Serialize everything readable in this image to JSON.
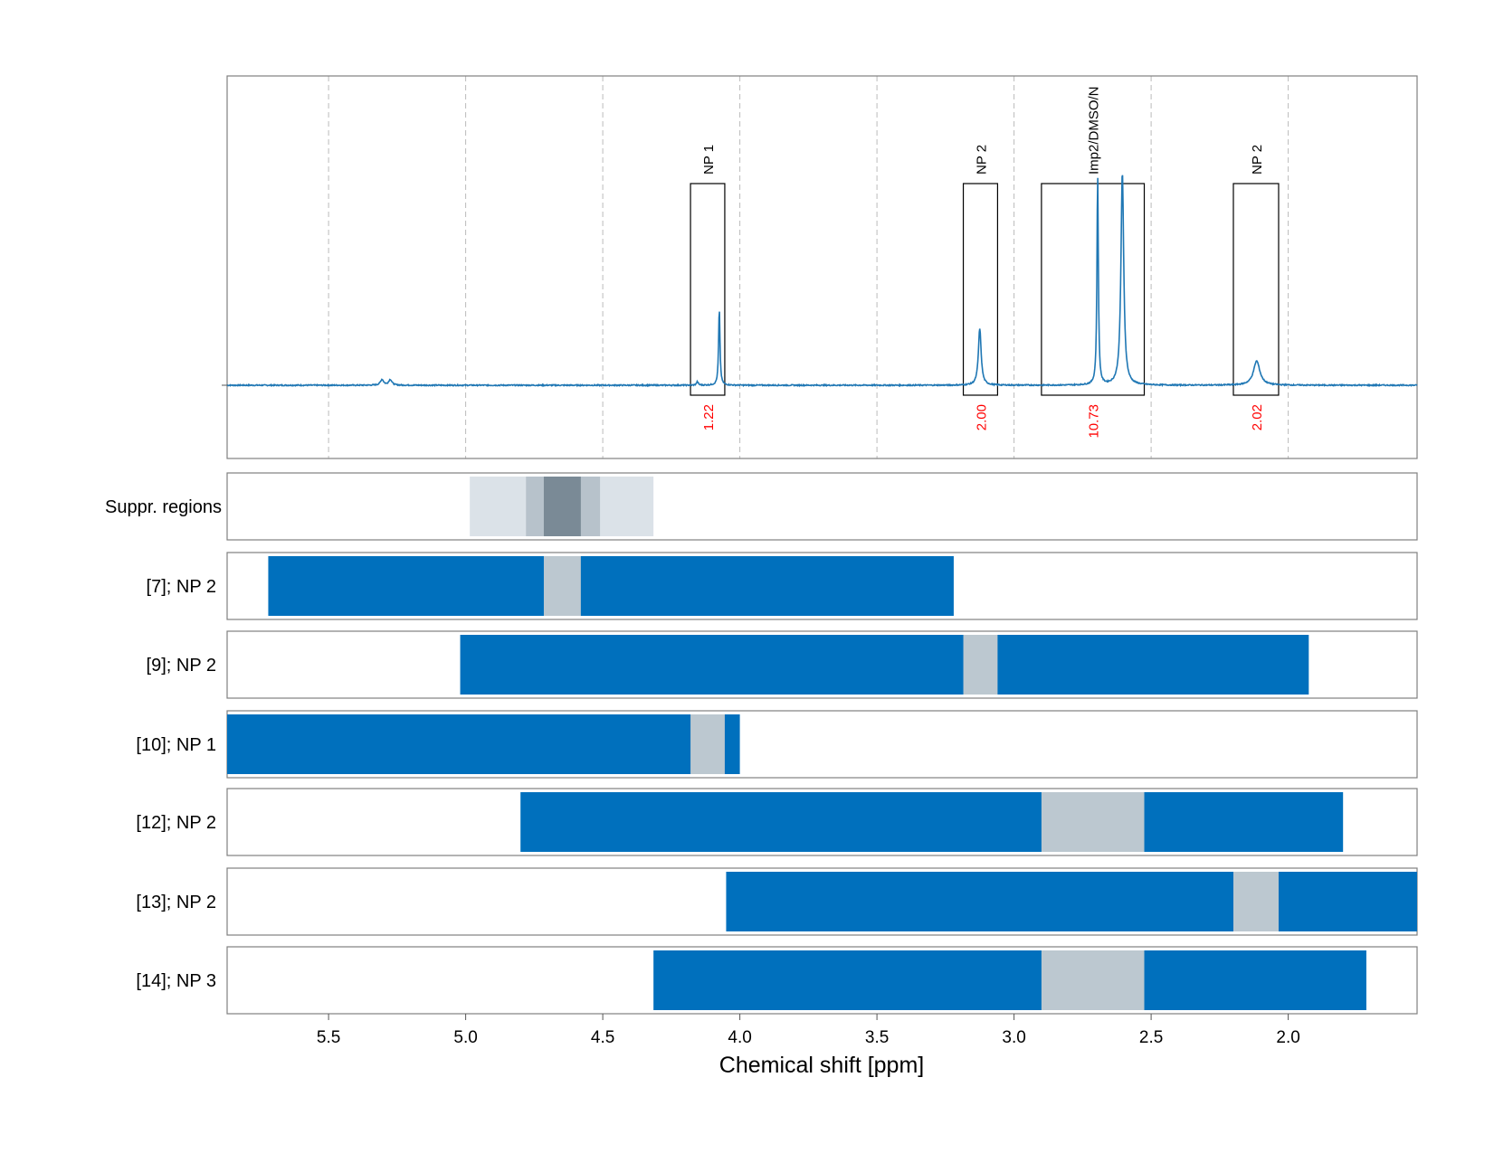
{
  "chart_data": {
    "type": "nmr-spectrum",
    "xlabel": "Chemical shift [ppm]",
    "xlim": [
      5.87,
      1.53
    ],
    "x_ticks": [
      {
        "value": 5.5,
        "label": "5.5"
      },
      {
        "value": 5.0,
        "label": "5.0"
      },
      {
        "value": 4.5,
        "label": "4.5"
      },
      {
        "value": 4.0,
        "label": "4.0"
      },
      {
        "value": 3.5,
        "label": "3.5"
      },
      {
        "value": 3.0,
        "label": "3.0"
      },
      {
        "value": 2.5,
        "label": "2.5"
      },
      {
        "value": 2.0,
        "label": "2.0"
      }
    ],
    "grid": true,
    "spectrum": {
      "color": "#1f77b4",
      "peaks": [
        {
          "ppm": 5.305,
          "height": 0.02,
          "width": 0.007
        },
        {
          "ppm": 5.275,
          "height": 0.02,
          "width": 0.007
        },
        {
          "ppm": 4.155,
          "height": 0.012,
          "width": 0.004
        },
        {
          "ppm": 4.075,
          "height": 0.27,
          "width": 0.003
        },
        {
          "ppm": 3.125,
          "height": 0.2,
          "width": 0.006
        },
        {
          "ppm": 2.695,
          "height": 0.74,
          "width": 0.003
        },
        {
          "ppm": 2.605,
          "height": 0.75,
          "width": 0.006
        },
        {
          "ppm": 2.115,
          "height": 0.085,
          "width": 0.014
        }
      ]
    },
    "integrals": [
      {
        "label": "NP 1",
        "from": 4.18,
        "to": 4.055,
        "value": "1.22"
      },
      {
        "label": "NP 2",
        "from": 3.185,
        "to": 3.06,
        "value": "2.00"
      },
      {
        "label": "Imp2/DMSO/N",
        "from": 2.9,
        "to": 2.525,
        "value": "10.73"
      },
      {
        "label": "NP 2",
        "from": 2.2,
        "to": 2.035,
        "value": "2.02"
      }
    ],
    "suppressed_regions": {
      "label": "Suppr. regions",
      "colors": [
        "#dbe2e8",
        "#b7c2cb",
        "#7a8a96"
      ],
      "bands": [
        {
          "from": 4.985,
          "to": 4.315,
          "level": 1
        },
        {
          "from": 4.78,
          "to": 4.51,
          "level": 2
        },
        {
          "from": 4.715,
          "to": 4.58,
          "level": 3
        }
      ]
    },
    "tracks": [
      {
        "label": "[7]; NP 2",
        "from": 5.72,
        "to": 3.22,
        "gaps": [
          {
            "from": 4.715,
            "to": 4.58
          }
        ]
      },
      {
        "label": "[9]; NP 2",
        "from": 5.02,
        "to": 1.925,
        "gaps": [
          {
            "from": 3.185,
            "to": 3.06
          }
        ]
      },
      {
        "label": "[10]; NP 1",
        "from": 5.87,
        "to": 4.0,
        "gaps": [
          {
            "from": 4.18,
            "to": 4.055
          }
        ]
      },
      {
        "label": "[12]; NP 2",
        "from": 4.8,
        "to": 1.8,
        "gaps": [
          {
            "from": 2.9,
            "to": 2.525
          }
        ]
      },
      {
        "label": "[13]; NP 2",
        "from": 4.05,
        "to": 1.53,
        "gaps": [
          {
            "from": 2.2,
            "to": 2.035
          }
        ]
      },
      {
        "label": "[14]; NP 3",
        "from": 4.315,
        "to": 1.715,
        "gaps": [
          {
            "from": 2.9,
            "to": 2.525
          }
        ]
      }
    ],
    "colors": {
      "track_fill": "#0070bd",
      "gap_fill": "#bcc8d0",
      "integral_value": "#ff0000",
      "frame": "#808080",
      "grid": "#bbbbbb"
    }
  }
}
